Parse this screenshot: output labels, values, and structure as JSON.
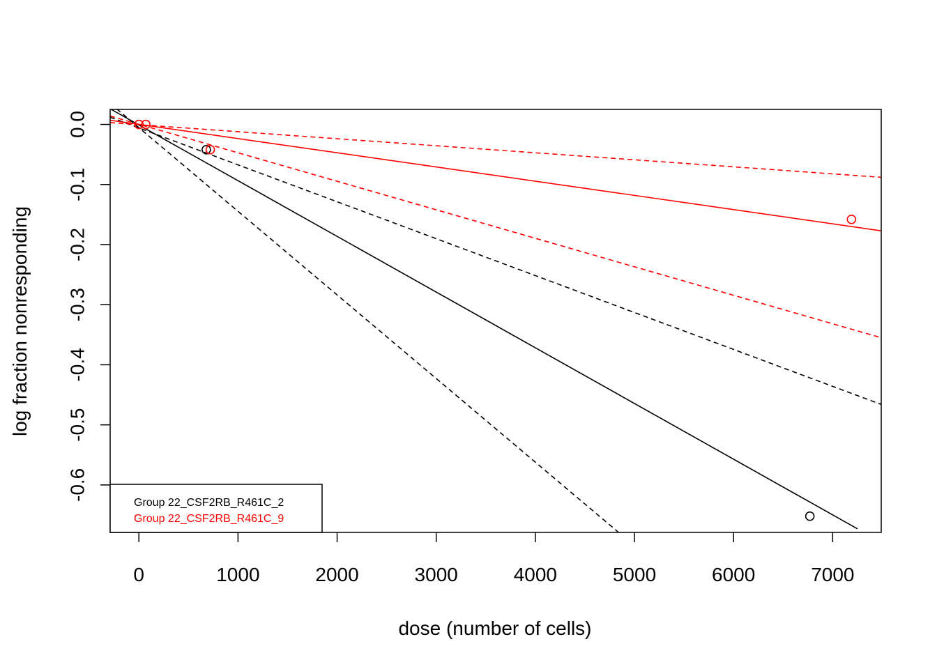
{
  "chart_data": {
    "type": "line",
    "title": "",
    "xlabel": "dose (number of cells)",
    "ylabel": "log fraction nonresponding",
    "xlim": [
      -290,
      7490
    ],
    "ylim": [
      -0.679,
      0.025
    ],
    "xticks": [
      0,
      1000,
      2000,
      3000,
      4000,
      5000,
      6000,
      7000
    ],
    "xtick_labels": [
      "0",
      "1000",
      "2000",
      "3000",
      "4000",
      "5000",
      "6000",
      "7000"
    ],
    "yticks": [
      0.0,
      -0.1,
      -0.2,
      -0.3,
      -0.4,
      -0.5,
      -0.6
    ],
    "ytick_labels": [
      "0.0",
      "-0.1",
      "-0.2",
      "-0.3",
      "-0.4",
      "-0.5",
      "-0.6"
    ],
    "grid": false,
    "legend": {
      "position": "bottom-left",
      "entries": [
        {
          "label": "Group 22_CSF2RB_R461C_2",
          "color": "#000000"
        },
        {
          "label": "Group 22_CSF2RB_R461C_9",
          "color": "#ff0000"
        }
      ]
    },
    "series": [
      {
        "color": "#000000",
        "points": [
          {
            "x": 680,
            "y": -0.042
          },
          {
            "x": 6770,
            "y": -0.652
          }
        ],
        "fit": [
          {
            "x": -290,
            "y": 0.026
          },
          {
            "x": 7250,
            "y": -0.673
          }
        ],
        "ci_upper": [
          {
            "x": -290,
            "y": 0.012
          },
          {
            "x": 7490,
            "y": -0.466
          }
        ],
        "ci_lower": [
          {
            "x": -290,
            "y": 0.035
          },
          {
            "x": 4840,
            "y": -0.679
          }
        ]
      },
      {
        "color": "#ff0000",
        "points": [
          {
            "x": 0,
            "y": 0.0
          },
          {
            "x": 70,
            "y": 0.0
          },
          {
            "x": 720,
            "y": -0.042
          },
          {
            "x": 7190,
            "y": -0.158
          }
        ],
        "fit": [
          {
            "x": -290,
            "y": 0.007
          },
          {
            "x": 7490,
            "y": -0.177
          }
        ],
        "ci_upper": [
          {
            "x": -290,
            "y": 0.003
          },
          {
            "x": 7490,
            "y": -0.088
          }
        ],
        "ci_lower": [
          {
            "x": -290,
            "y": 0.014
          },
          {
            "x": 7490,
            "y": -0.355
          }
        ]
      }
    ]
  }
}
